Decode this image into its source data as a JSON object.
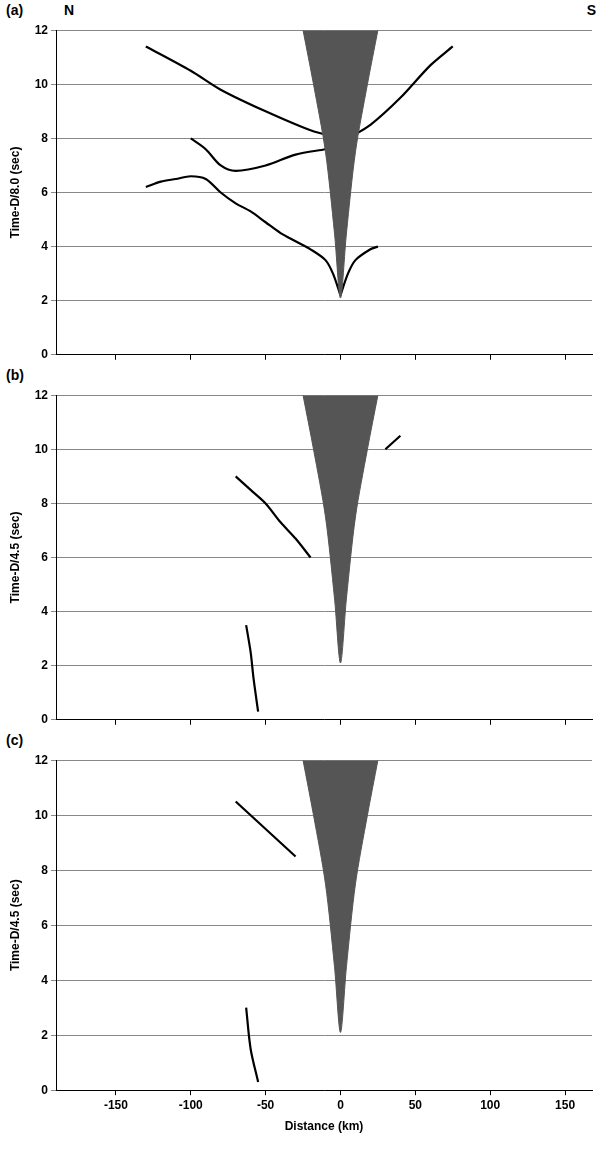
{
  "chart_data": [
    {
      "type": "line",
      "panel_label": "(a)",
      "corner_labels": {
        "left": "N",
        "right": "S"
      },
      "y_label": "Time-D/8.0 (sec)",
      "tick_labels": "y",
      "grid": true,
      "xlim": [
        -190,
        168
      ],
      "xticks": [
        -150,
        -100,
        -50,
        0,
        50,
        100,
        150
      ],
      "ylim": [
        0,
        12
      ],
      "yticks": [
        0,
        2,
        4,
        6,
        8,
        10,
        12
      ],
      "series": [
        {
          "type": "area",
          "color": "#555555",
          "x": [
            -25,
            -18,
            -10,
            -4,
            0,
            4,
            10,
            18,
            25
          ],
          "values": [
            12,
            10,
            7.5,
            4.5,
            2.1,
            4.5,
            7.5,
            10,
            12
          ]
        },
        {
          "color": "#000000",
          "x": [
            -130,
            -120,
            -110,
            -100,
            -90,
            -80,
            -70,
            -60,
            -50,
            -40,
            -30,
            -20,
            -10,
            -5,
            0
          ],
          "values": [
            6.2,
            6.4,
            6.5,
            6.6,
            6.5,
            6.0,
            5.6,
            5.3,
            4.9,
            4.5,
            4.2,
            3.9,
            3.5,
            3.0,
            2.2
          ]
        },
        {
          "color": "#000000",
          "x": [
            0,
            5,
            10,
            20,
            25
          ],
          "values": [
            2.2,
            3.0,
            3.5,
            3.9,
            4.0
          ]
        },
        {
          "color": "#000000",
          "x": [
            -100,
            -90,
            -80,
            -70,
            -50,
            -30,
            -10
          ],
          "values": [
            8.0,
            7.6,
            7.0,
            6.8,
            7.0,
            7.4,
            7.6
          ]
        },
        {
          "color": "#000000",
          "x": [
            -130,
            -100,
            -80,
            -50,
            -20,
            0
          ],
          "values": [
            11.4,
            10.5,
            9.8,
            9.0,
            8.3,
            8.0
          ]
        },
        {
          "color": "#000000",
          "x": [
            5,
            20,
            40,
            60,
            75
          ],
          "values": [
            8.0,
            8.5,
            9.5,
            10.7,
            11.4
          ]
        }
      ]
    },
    {
      "type": "line",
      "panel_label": "(b)",
      "y_label": "Time-D/4.5 (sec)",
      "tick_labels": "y",
      "grid": true,
      "xlim": [
        -190,
        168
      ],
      "xticks": [
        -150,
        -100,
        -50,
        0,
        50,
        100,
        150
      ],
      "ylim": [
        0,
        12
      ],
      "yticks": [
        0,
        2,
        4,
        6,
        8,
        10,
        12
      ],
      "series": [
        {
          "type": "area",
          "color": "#555555",
          "x": [
            -25,
            -18,
            -10,
            -4,
            0,
            4,
            10,
            18,
            25
          ],
          "values": [
            12,
            10,
            7.5,
            4.5,
            2.1,
            4.5,
            7.5,
            10,
            12
          ]
        },
        {
          "color": "#000000",
          "x": [
            -70,
            -60,
            -50,
            -40,
            -30,
            -20
          ],
          "values": [
            9.0,
            8.5,
            8.0,
            7.3,
            6.7,
            6.0
          ]
        },
        {
          "color": "#000000",
          "x": [
            -63,
            -60,
            -58,
            -55
          ],
          "values": [
            3.5,
            2.5,
            1.5,
            0.3
          ]
        },
        {
          "color": "#000000",
          "x": [
            30,
            40
          ],
          "values": [
            10.0,
            10.5
          ]
        }
      ]
    },
    {
      "type": "line",
      "panel_label": "(c)",
      "y_label": "Time-D/4.5 (sec)",
      "x_label": "Distance (km)",
      "grid": true,
      "xlim": [
        -190,
        168
      ],
      "xticks": [
        -150,
        -100,
        -50,
        0,
        50,
        100,
        150
      ],
      "ylim": [
        0,
        12
      ],
      "yticks": [
        0,
        2,
        4,
        6,
        8,
        10,
        12
      ],
      "series": [
        {
          "type": "area",
          "color": "#555555",
          "x": [
            -25,
            -18,
            -10,
            -4,
            0,
            4,
            10,
            18,
            25
          ],
          "values": [
            12,
            10,
            7.5,
            4.5,
            2.1,
            4.5,
            7.5,
            10,
            12
          ]
        },
        {
          "color": "#000000",
          "x": [
            -63,
            -60,
            -55
          ],
          "values": [
            3.0,
            1.5,
            0.3
          ]
        },
        {
          "color": "#000000",
          "x": [
            -70,
            -50,
            -30
          ],
          "values": [
            10.5,
            9.5,
            8.5
          ]
        }
      ]
    }
  ]
}
